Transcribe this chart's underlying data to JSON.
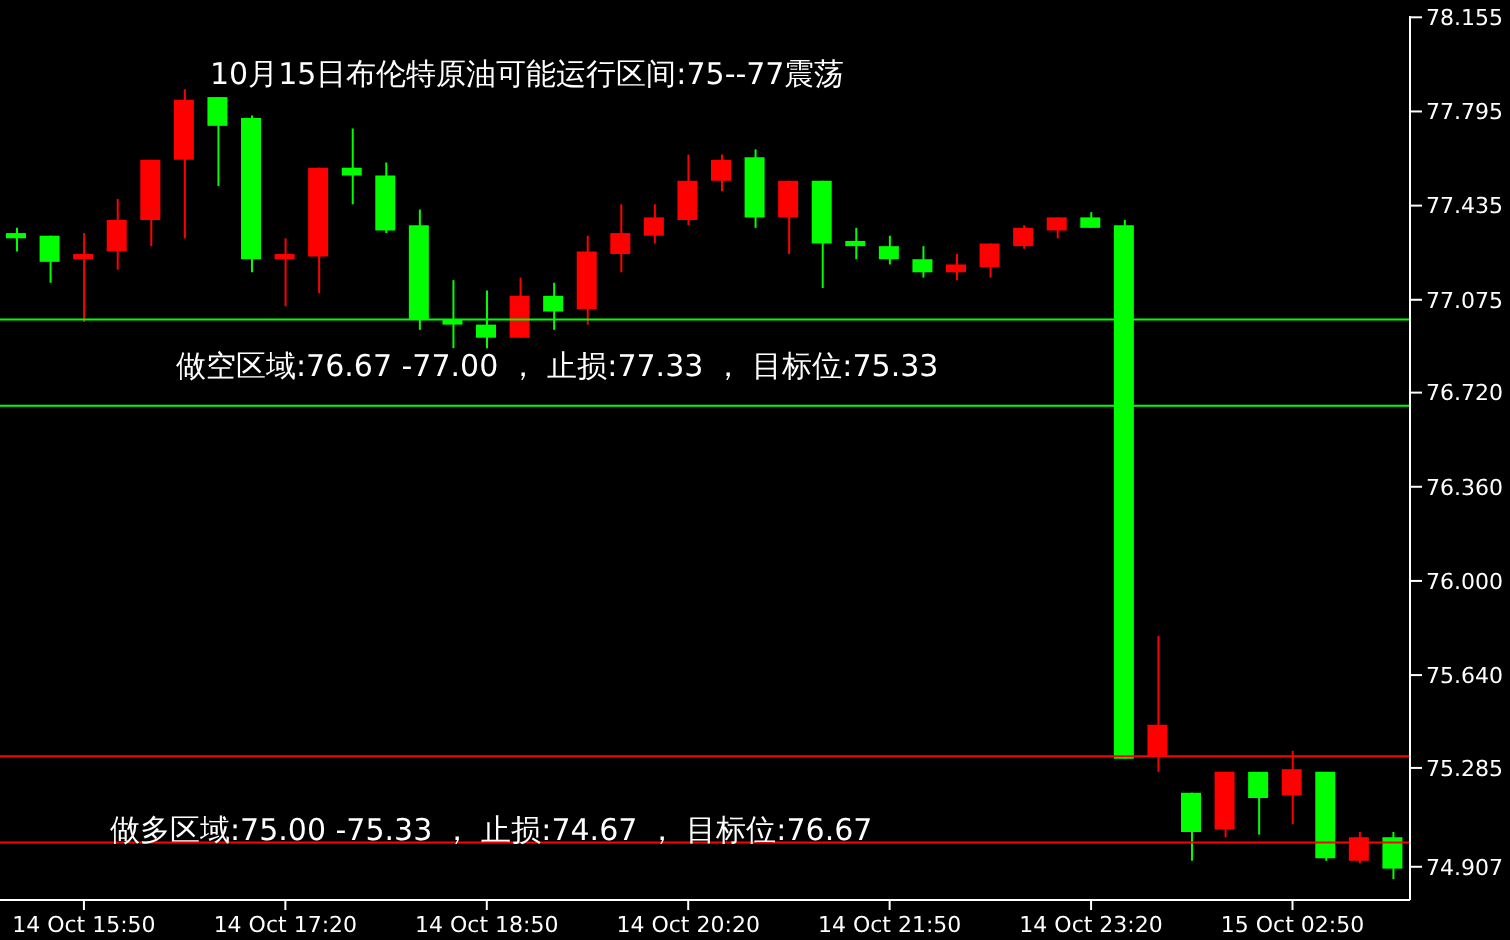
{
  "chart_data": {
    "type": "candlestick",
    "title": "10月15日布伦特原油可能运行区间:75--77震荡",
    "annotations": [
      "做空区域:76.67 -77.00 ， 止损:77.33 ， 目标位:75.33",
      "做多区域:75.00 -75.33 ， 止损:74.67 ， 目标位:76.67"
    ],
    "categories": [
      null,
      null,
      "14 Oct 15:50",
      null,
      null,
      null,
      null,
      null,
      "14 Oct 17:20",
      null,
      null,
      null,
      null,
      null,
      "14 Oct 18:50",
      null,
      null,
      null,
      null,
      null,
      "14 Oct 20:20",
      null,
      null,
      null,
      null,
      null,
      "14 Oct 21:50",
      null,
      null,
      null,
      null,
      null,
      "14 Oct 23:20",
      null,
      null,
      null,
      null,
      null,
      "15 Oct 02:50",
      null,
      null,
      null
    ],
    "ohlc": [
      [
        77.33,
        77.35,
        77.26,
        77.31
      ],
      [
        77.32,
        77.32,
        77.14,
        77.22
      ],
      [
        77.23,
        77.33,
        76.99,
        77.25
      ],
      [
        77.26,
        77.46,
        77.19,
        77.38
      ],
      [
        77.38,
        77.61,
        77.28,
        77.61
      ],
      [
        77.61,
        77.88,
        77.31,
        77.84
      ],
      [
        77.85,
        77.85,
        77.51,
        77.74
      ],
      [
        77.77,
        77.78,
        77.18,
        77.23
      ],
      [
        77.23,
        77.31,
        77.05,
        77.25
      ],
      [
        77.24,
        77.58,
        77.1,
        77.58
      ],
      [
        77.58,
        77.73,
        77.44,
        77.55
      ],
      [
        77.55,
        77.6,
        77.33,
        77.34
      ],
      [
        77.36,
        77.42,
        76.96,
        77.0
      ],
      [
        77.0,
        77.15,
        76.89,
        76.98
      ],
      [
        76.98,
        77.11,
        76.89,
        76.93
      ],
      [
        76.93,
        77.16,
        76.93,
        77.09
      ],
      [
        77.09,
        77.14,
        76.96,
        77.03
      ],
      [
        77.04,
        77.32,
        76.98,
        77.26
      ],
      [
        77.25,
        77.44,
        77.18,
        77.33
      ],
      [
        77.32,
        77.44,
        77.29,
        77.39
      ],
      [
        77.38,
        77.63,
        77.36,
        77.53
      ],
      [
        77.53,
        77.63,
        77.49,
        77.61
      ],
      [
        77.62,
        77.65,
        77.35,
        77.39
      ],
      [
        77.39,
        77.53,
        77.25,
        77.53
      ],
      [
        77.53,
        77.53,
        77.12,
        77.29
      ],
      [
        77.3,
        77.35,
        77.23,
        77.28
      ],
      [
        77.28,
        77.32,
        77.21,
        77.23
      ],
      [
        77.23,
        77.28,
        77.16,
        77.18
      ],
      [
        77.18,
        77.25,
        77.15,
        77.21
      ],
      [
        77.2,
        77.29,
        77.16,
        77.29
      ],
      [
        77.28,
        77.36,
        77.27,
        77.35
      ],
      [
        77.34,
        77.39,
        77.31,
        77.39
      ],
      [
        77.39,
        77.41,
        77.35,
        77.35
      ],
      [
        77.36,
        77.38,
        75.32,
        75.32
      ],
      [
        75.33,
        75.79,
        75.27,
        75.45
      ],
      [
        75.19,
        75.19,
        74.93,
        75.04
      ],
      [
        75.05,
        75.27,
        75.02,
        75.27
      ],
      [
        75.27,
        75.27,
        75.03,
        75.17
      ],
      [
        75.18,
        75.35,
        75.07,
        75.28
      ],
      [
        75.27,
        75.27,
        74.93,
        74.94
      ],
      [
        74.93,
        75.04,
        74.92,
        75.02
      ],
      [
        75.02,
        75.04,
        74.86,
        74.9
      ]
    ],
    "colors": [
      "#00ff00",
      "#00ff00",
      "#ff0000",
      "#ff0000",
      "#ff0000",
      "#ff0000",
      "#00ff00",
      "#00ff00",
      "#ff0000",
      "#ff0000",
      "#00ff00",
      "#00ff00",
      "#00ff00",
      "#00ff00",
      "#00ff00",
      "#ff0000",
      "#00ff00",
      "#ff0000",
      "#ff0000",
      "#ff0000",
      "#ff0000",
      "#ff0000",
      "#00ff00",
      "#ff0000",
      "#00ff00",
      "#00ff00",
      "#00ff00",
      "#00ff00",
      "#ff0000",
      "#ff0000",
      "#ff0000",
      "#ff0000",
      "#00ff00",
      "#00ff00",
      "#ff0000",
      "#00ff00",
      "#ff0000",
      "#00ff00",
      "#ff0000",
      "#00ff00",
      "#ff0000",
      "#00ff00"
    ],
    "ylim": [
      74.78,
      78.16
    ],
    "yticks": [
      {
        "value": 78.155,
        "label": "78.155"
      },
      {
        "value": 77.795,
        "label": "77.795"
      },
      {
        "value": 77.435,
        "label": "77.435"
      },
      {
        "value": 77.075,
        "label": "77.075"
      },
      {
        "value": 76.72,
        "label": "76.720"
      },
      {
        "value": 76.36,
        "label": "76.360"
      },
      {
        "value": 76,
        "label": "76.000"
      },
      {
        "value": 75.64,
        "label": "75.640"
      },
      {
        "value": 75.285,
        "label": "75.285"
      },
      {
        "value": 74.907,
        "label": "74.907"
      }
    ],
    "ref_lines": [
      {
        "axis": "y",
        "value": 77.0,
        "color": "#00ff00"
      },
      {
        "axis": "y",
        "value": 76.67,
        "color": "#00ff00"
      },
      {
        "axis": "y",
        "value": 75.33,
        "color": "#ff0000"
      },
      {
        "axis": "y",
        "value": 75.0,
        "color": "#ff0000"
      }
    ],
    "grid": false,
    "legend": false
  }
}
